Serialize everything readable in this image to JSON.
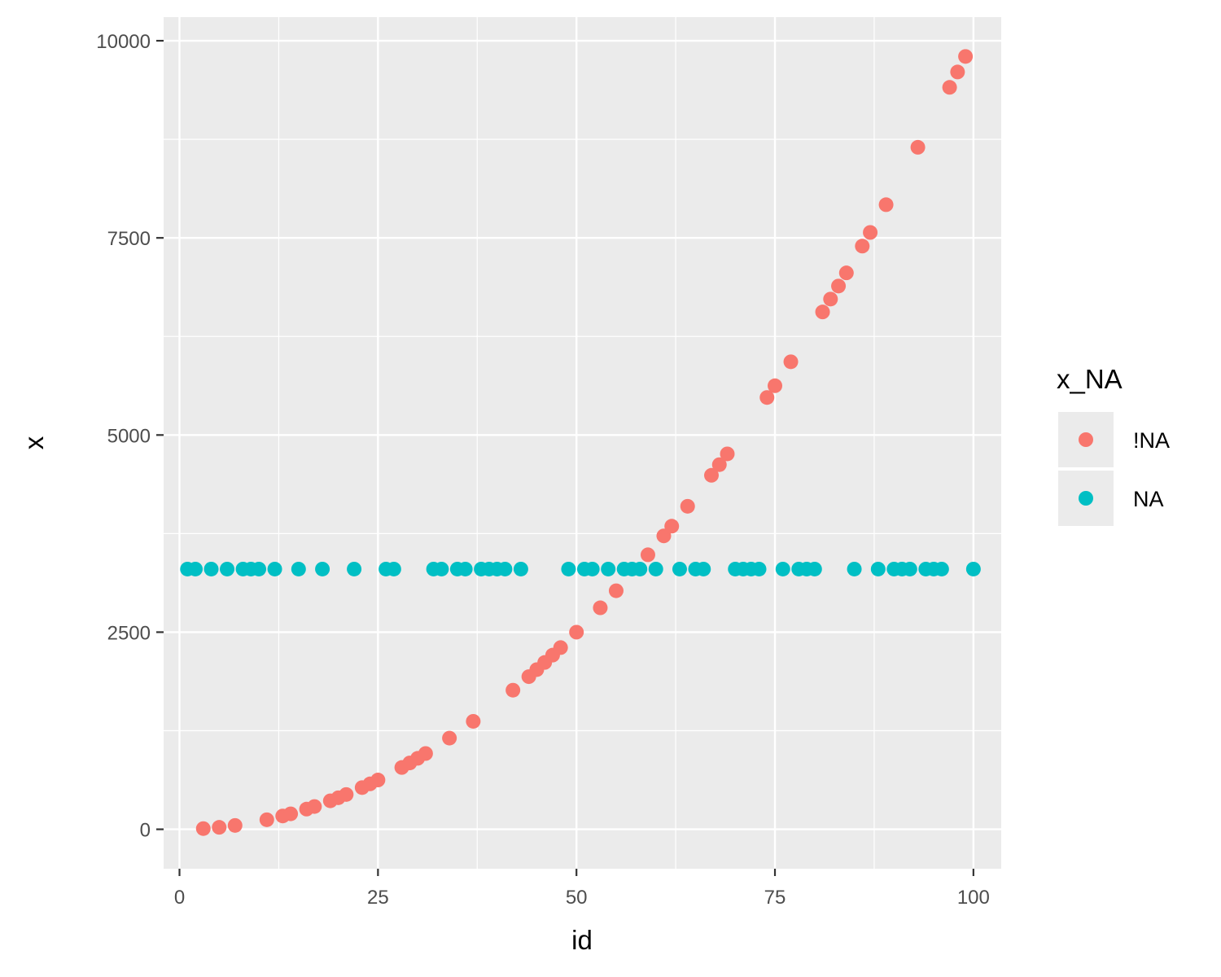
{
  "chart_data": {
    "type": "scatter",
    "xlabel": "id",
    "ylabel": "x",
    "xlim": [
      -2,
      103.5
    ],
    "ylim": [
      -500,
      10300
    ],
    "x_ticks": [
      0,
      25,
      50,
      75,
      100
    ],
    "y_ticks": [
      0,
      2500,
      5000,
      7500,
      10000
    ],
    "grid": true,
    "legend": {
      "title": "x_NA",
      "placement": "right",
      "entries": [
        "!NA",
        "NA"
      ]
    },
    "series": [
      {
        "name": "!NA",
        "color": "#F8766D",
        "x": [
          3,
          5,
          7,
          11,
          13,
          14,
          16,
          17,
          19,
          20,
          21,
          23,
          24,
          25,
          28,
          29,
          30,
          31,
          34,
          37,
          42,
          44,
          45,
          46,
          47,
          48,
          50,
          53,
          55,
          59,
          61,
          62,
          64,
          67,
          68,
          69,
          74,
          75,
          77,
          81,
          82,
          83,
          84,
          86,
          87,
          89,
          93,
          97,
          98,
          99
        ],
        "y": [
          9,
          25,
          49,
          121,
          169,
          196,
          256,
          289,
          361,
          400,
          441,
          529,
          576,
          625,
          784,
          841,
          900,
          961,
          1156,
          1369,
          1764,
          1936,
          2025,
          2116,
          2209,
          2304,
          2500,
          2809,
          3025,
          3481,
          3721,
          3844,
          4096,
          4489,
          4624,
          4761,
          5476,
          5625,
          5929,
          6561,
          6724,
          6889,
          7056,
          7396,
          7569,
          7921,
          8649,
          9409,
          9604,
          9801
        ]
      },
      {
        "name": "NA",
        "color": "#00BFC4",
        "x": [
          1,
          2,
          4,
          6,
          8,
          9,
          10,
          12,
          15,
          18,
          22,
          26,
          27,
          32,
          33,
          35,
          36,
          38,
          39,
          40,
          41,
          43,
          49,
          51,
          52,
          54,
          56,
          57,
          58,
          60,
          63,
          65,
          66,
          70,
          71,
          72,
          73,
          76,
          78,
          79,
          80,
          85,
          88,
          90,
          91,
          92,
          94,
          95,
          96,
          100
        ],
        "y": [
          3300,
          3300,
          3300,
          3300,
          3300,
          3300,
          3300,
          3300,
          3300,
          3300,
          3300,
          3300,
          3300,
          3300,
          3300,
          3300,
          3300,
          3300,
          3300,
          3300,
          3300,
          3300,
          3300,
          3300,
          3300,
          3300,
          3300,
          3300,
          3300,
          3300,
          3300,
          3300,
          3300,
          3300,
          3300,
          3300,
          3300,
          3300,
          3300,
          3300,
          3300,
          3300,
          3300,
          3300,
          3300,
          3300,
          3300,
          3300,
          3300,
          3300
        ]
      }
    ]
  },
  "colors": {
    "panel_background": "#EBEBEB",
    "grid_line": "#FFFFFF",
    "tick_text": "#4D4D4D",
    "tick_mark": "#333333"
  }
}
